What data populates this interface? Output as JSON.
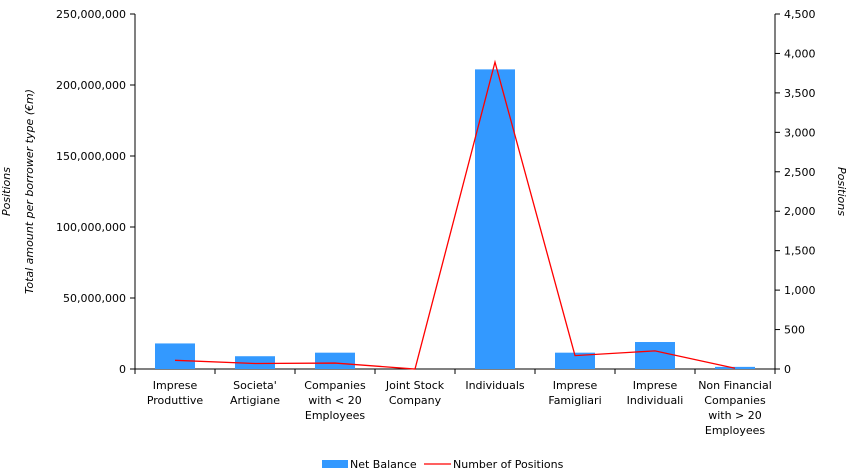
{
  "chart_data": {
    "type": "bar",
    "categories": [
      [
        "Imprese",
        "Produttive"
      ],
      [
        "Societa'",
        "Artigiane"
      ],
      [
        "Companies",
        "with <  20",
        "Employees"
      ],
      [
        "Joint Stock",
        "Company"
      ],
      [
        "Individuals"
      ],
      [
        "Imprese",
        "Famigliari"
      ],
      [
        "Imprese",
        "Individuali"
      ],
      [
        "Non Financial",
        "Companies",
        "with > 20",
        "Employees"
      ]
    ],
    "series": [
      {
        "name": "Net Balance",
        "type": "bar",
        "axis": "left",
        "color": "#3399ff",
        "values": [
          18000000,
          9000000,
          11500000,
          0,
          211000000,
          11500000,
          19000000,
          1500000
        ]
      },
      {
        "name": "Number of Positions",
        "type": "line",
        "axis": "right",
        "color": "#ff0000",
        "values": [
          110,
          70,
          75,
          0,
          3890,
          170,
          230,
          10
        ]
      }
    ],
    "yleft": {
      "label_lines": [
        "Positions",
        "Total amount per borrower type (€m)"
      ],
      "ticks": [
        "0",
        "50,000,000",
        "100,000,000",
        "150,000,000",
        "200,000,000",
        "250,000,000"
      ],
      "ylim": [
        0,
        250000000
      ]
    },
    "yright": {
      "label": "Positions",
      "ticks": [
        "0",
        "500",
        "1,000",
        "1,500",
        "2,000",
        "2,500",
        "3,000",
        "3,500",
        "4,000",
        "4,500"
      ],
      "ylim": [
        0,
        4500
      ]
    },
    "grid": false,
    "legend_position": "bottom"
  }
}
